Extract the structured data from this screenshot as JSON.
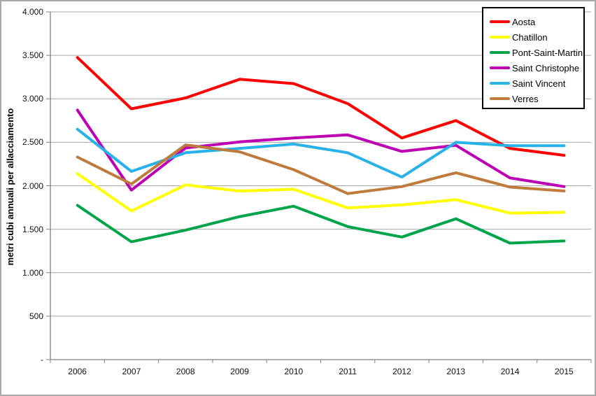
{
  "window": {
    "background": "#ffffff",
    "border_color": "#a9a9a9"
  },
  "chart_data": {
    "type": "line",
    "title": "",
    "xlabel": "",
    "ylabel": "metri cubi annuali per allacciamento",
    "categories": [
      "2006",
      "2007",
      "2008",
      "2009",
      "2010",
      "2011",
      "2012",
      "2013",
      "2014",
      "2015"
    ],
    "ylim": [
      0,
      4000
    ],
    "y_ticks": [
      {
        "value": 0,
        "label": "-"
      },
      {
        "value": 500,
        "label": "500"
      },
      {
        "value": 1000,
        "label": "1.000"
      },
      {
        "value": 1500,
        "label": "1.500"
      },
      {
        "value": 2000,
        "label": "2.000"
      },
      {
        "value": 2500,
        "label": "2.500"
      },
      {
        "value": 3000,
        "label": "3.000"
      },
      {
        "value": 3500,
        "label": "3.500"
      },
      {
        "value": 4000,
        "label": "4.000"
      }
    ],
    "grid": true,
    "legend_position": "top-right",
    "axis_color": "#808080",
    "grid_color": "#a6a6a6",
    "series": [
      {
        "name": "Aosta",
        "color": "#fe0000",
        "values": [
          3475,
          2885,
          3010,
          3225,
          3175,
          2945,
          2550,
          2750,
          2430,
          2350
        ]
      },
      {
        "name": "Chatillon",
        "color": "#ffff00",
        "values": [
          2140,
          1710,
          2010,
          1940,
          1960,
          1745,
          1780,
          1840,
          1685,
          1695
        ]
      },
      {
        "name": "Pont-Saint-Martin",
        "color": "#00a44a",
        "values": [
          1775,
          1355,
          1490,
          1645,
          1765,
          1530,
          1410,
          1620,
          1340,
          1365
        ]
      },
      {
        "name": "Saint Christophe",
        "color": "#be00b4",
        "values": [
          2870,
          1950,
          2435,
          2505,
          2550,
          2585,
          2395,
          2465,
          2090,
          1990
        ]
      },
      {
        "name": "Saint Vincent",
        "color": "#29b2e8",
        "values": [
          2650,
          2165,
          2380,
          2430,
          2480,
          2380,
          2100,
          2500,
          2460,
          2460
        ]
      },
      {
        "name": "Verres",
        "color": "#be7b3c",
        "values": [
          2330,
          2020,
          2470,
          2390,
          2185,
          1910,
          1990,
          2150,
          1985,
          1940
        ]
      }
    ]
  }
}
